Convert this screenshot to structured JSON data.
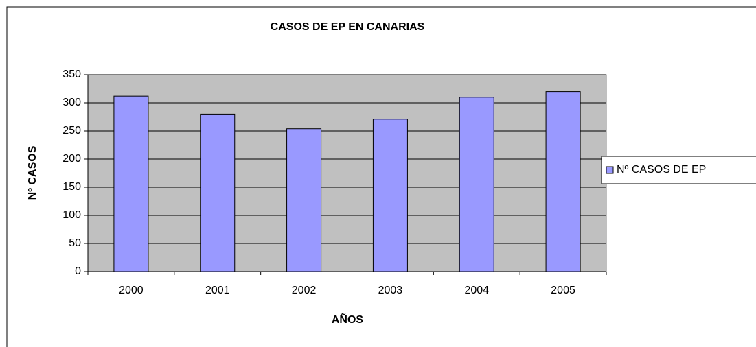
{
  "chart_data": {
    "type": "bar",
    "title": "CASOS DE EP EN CANARIAS",
    "x_label": "AÑOS",
    "y_label": "Nº CASOS",
    "categories": [
      "2000",
      "2001",
      "2002",
      "2003",
      "2004",
      "2005"
    ],
    "series": [
      {
        "name": "Nº CASOS DE EP",
        "color": "#9999ff",
        "values": [
          312,
          280,
          254,
          271,
          310,
          320
        ]
      }
    ],
    "ylim": [
      0,
      350
    ],
    "yticks": [
      0,
      50,
      100,
      150,
      200,
      250,
      300,
      350
    ],
    "grid": true,
    "legend": "right",
    "plot_background": "#c0c0c0"
  }
}
